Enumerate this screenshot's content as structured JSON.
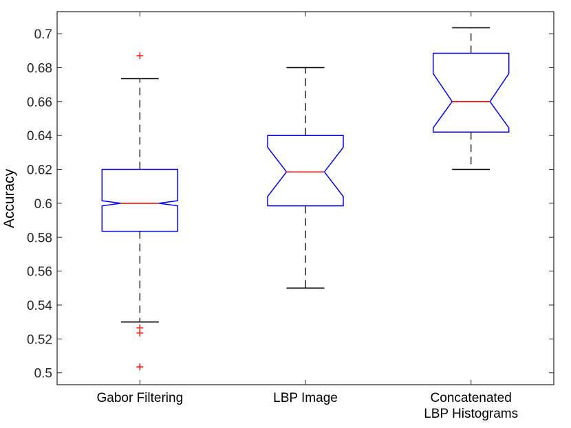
{
  "chart_data": {
    "type": "boxplot",
    "notched": true,
    "ylabel": "Accuracy",
    "ylim": [
      0.493,
      0.713
    ],
    "yticks": [
      0.5,
      0.52,
      0.54,
      0.56,
      0.58,
      0.6,
      0.62,
      0.64,
      0.66,
      0.68,
      0.7
    ],
    "ytick_labels": [
      "0.5",
      "0.52",
      "0.54",
      "0.56",
      "0.58",
      "0.6",
      "0.62",
      "0.64",
      "0.66",
      "0.68",
      "0.7"
    ],
    "grid": false,
    "colors": {
      "box": "#0000ff",
      "median": "#ff0000",
      "whisker": "#000000",
      "outlier": "#ff0000"
    },
    "categories": [
      {
        "label_lines": [
          "Gabor Filtering"
        ],
        "q1": 0.5835,
        "median": 0.6,
        "q3": 0.62,
        "whisker_low": 0.53,
        "whisker_high": 0.6735,
        "notch_low": 0.5985,
        "notch_high": 0.6015,
        "outliers": [
          0.687,
          0.5265,
          0.5235,
          0.5035
        ]
      },
      {
        "label_lines": [
          "LBP Image"
        ],
        "q1": 0.5985,
        "median": 0.6185,
        "q3": 0.64,
        "whisker_low": 0.55,
        "whisker_high": 0.68,
        "notch_low": 0.604,
        "notch_high": 0.633,
        "outliers": []
      },
      {
        "label_lines": [
          "Concatenated",
          "LBP Histograms"
        ],
        "q1": 0.642,
        "median": 0.66,
        "q3": 0.6885,
        "whisker_low": 0.62,
        "whisker_high": 0.7035,
        "notch_low": 0.6445,
        "notch_high": 0.6765,
        "outliers": []
      }
    ]
  }
}
